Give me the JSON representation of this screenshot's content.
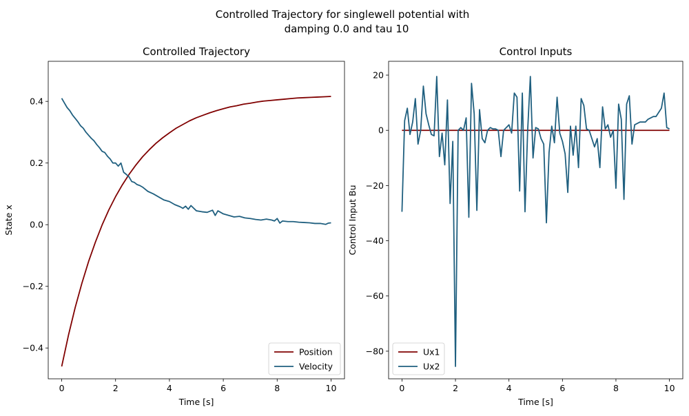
{
  "figure": {
    "title_line1": "Controlled Trajectory for singlewell potential with",
    "title_line2": "damping 0.0 and tau 10"
  },
  "colors": {
    "series_red": "#800000",
    "series_blue": "#1f5f7f"
  },
  "chart_data": [
    {
      "type": "line",
      "title": "Controlled Trajectory",
      "xlabel": "Time [s]",
      "ylabel": "State x",
      "xlim": [
        -0.5,
        10.5
      ],
      "ylim": [
        -0.5,
        0.53
      ],
      "xticks": [
        0,
        2,
        4,
        6,
        8,
        10
      ],
      "xtick_labels": [
        "0",
        "2",
        "4",
        "6",
        "8",
        "10"
      ],
      "yticks": [
        -0.4,
        -0.2,
        0.0,
        0.2,
        0.4
      ],
      "ytick_labels": [
        "−0.4",
        "−0.2",
        "0.0",
        "0.2",
        "0.4"
      ],
      "legend_position": "lower-right",
      "series": [
        {
          "name": "Position",
          "color": "#800000",
          "x": [
            0,
            0.25,
            0.5,
            0.75,
            1.0,
            1.25,
            1.5,
            1.75,
            2.0,
            2.25,
            2.5,
            2.75,
            3.0,
            3.25,
            3.5,
            3.75,
            4.0,
            4.25,
            4.5,
            4.75,
            5.0,
            5.25,
            5.5,
            5.75,
            6.0,
            6.25,
            6.5,
            6.75,
            7.0,
            7.25,
            7.5,
            7.75,
            8.0,
            8.25,
            8.5,
            8.75,
            9.0,
            9.25,
            9.5,
            9.75,
            10.0
          ],
          "y": [
            -0.46,
            -0.359,
            -0.269,
            -0.19,
            -0.119,
            -0.057,
            -0.001,
            0.048,
            0.091,
            0.129,
            0.163,
            0.193,
            0.22,
            0.243,
            0.264,
            0.282,
            0.298,
            0.313,
            0.325,
            0.337,
            0.347,
            0.355,
            0.363,
            0.37,
            0.376,
            0.382,
            0.386,
            0.391,
            0.394,
            0.398,
            0.401,
            0.403,
            0.405,
            0.407,
            0.409,
            0.411,
            0.412,
            0.413,
            0.414,
            0.415,
            0.416
          ]
        },
        {
          "name": "Velocity",
          "color": "#1f5f7f",
          "x": [
            0,
            0.1,
            0.2,
            0.3,
            0.4,
            0.5,
            0.6,
            0.7,
            0.8,
            0.9,
            1.0,
            1.1,
            1.2,
            1.3,
            1.4,
            1.5,
            1.6,
            1.7,
            1.8,
            1.9,
            2.0,
            2.1,
            2.2,
            2.3,
            2.4,
            2.5,
            2.6,
            2.7,
            2.8,
            2.9,
            3.0,
            3.2,
            3.4,
            3.6,
            3.8,
            4.0,
            4.2,
            4.4,
            4.5,
            4.6,
            4.7,
            4.8,
            5.0,
            5.2,
            5.4,
            5.6,
            5.7,
            5.8,
            6.0,
            6.2,
            6.4,
            6.6,
            6.8,
            7.0,
            7.2,
            7.4,
            7.6,
            7.8,
            7.9,
            8.0,
            8.1,
            8.2,
            8.4,
            8.6,
            8.8,
            9.0,
            9.2,
            9.4,
            9.6,
            9.8,
            9.9,
            10.0
          ],
          "y": [
            0.41,
            0.395,
            0.38,
            0.37,
            0.356,
            0.345,
            0.334,
            0.321,
            0.313,
            0.3,
            0.29,
            0.28,
            0.272,
            0.26,
            0.25,
            0.238,
            0.234,
            0.222,
            0.213,
            0.2,
            0.2,
            0.19,
            0.2,
            0.17,
            0.163,
            0.155,
            0.14,
            0.137,
            0.13,
            0.127,
            0.122,
            0.108,
            0.1,
            0.09,
            0.08,
            0.075,
            0.065,
            0.058,
            0.053,
            0.06,
            0.05,
            0.062,
            0.045,
            0.042,
            0.04,
            0.047,
            0.03,
            0.045,
            0.035,
            0.03,
            0.025,
            0.027,
            0.022,
            0.02,
            0.017,
            0.015,
            0.018,
            0.015,
            0.012,
            0.02,
            0.005,
            0.012,
            0.01,
            0.01,
            0.008,
            0.007,
            0.006,
            0.004,
            0.004,
            0.001,
            0.005,
            0.006
          ]
        }
      ]
    },
    {
      "type": "line",
      "title": "Control Inputs",
      "xlabel": "Time [s]",
      "ylabel": "Control Input Bu",
      "xlim": [
        -0.5,
        10.5
      ],
      "ylim": [
        -90,
        25
      ],
      "xticks": [
        0,
        2,
        4,
        6,
        8,
        10
      ],
      "xtick_labels": [
        "0",
        "2",
        "4",
        "6",
        "8",
        "10"
      ],
      "yticks": [
        -80,
        -60,
        -40,
        -20,
        0,
        20
      ],
      "ytick_labels": [
        "−80",
        "−60",
        "−40",
        "−20",
        "0",
        "20"
      ],
      "legend_position": "lower-left",
      "series": [
        {
          "name": "Ux1",
          "color": "#800000",
          "x": [
            0,
            10
          ],
          "y": [
            0,
            0
          ]
        },
        {
          "name": "Ux2",
          "color": "#1f5f7f",
          "x": [
            0,
            0.1,
            0.2,
            0.3,
            0.4,
            0.5,
            0.6,
            0.7,
            0.8,
            0.9,
            1.0,
            1.1,
            1.2,
            1.3,
            1.4,
            1.5,
            1.6,
            1.7,
            1.8,
            1.9,
            2.0,
            2.1,
            2.2,
            2.3,
            2.4,
            2.5,
            2.6,
            2.7,
            2.8,
            2.9,
            3.0,
            3.1,
            3.2,
            3.3,
            3.4,
            3.5,
            3.6,
            3.7,
            3.8,
            3.9,
            4.0,
            4.1,
            4.2,
            4.3,
            4.4,
            4.5,
            4.6,
            4.7,
            4.8,
            4.9,
            5.0,
            5.1,
            5.2,
            5.3,
            5.4,
            5.5,
            5.6,
            5.7,
            5.8,
            5.9,
            6.0,
            6.1,
            6.2,
            6.3,
            6.4,
            6.5,
            6.6,
            6.7,
            6.8,
            6.9,
            7.0,
            7.1,
            7.2,
            7.3,
            7.4,
            7.5,
            7.6,
            7.7,
            7.8,
            7.9,
            8.0,
            8.1,
            8.2,
            8.3,
            8.4,
            8.5,
            8.6,
            8.7,
            8.8,
            8.9,
            9.0,
            9.1,
            9.2,
            9.3,
            9.4,
            9.5,
            9.6,
            9.7,
            9.8,
            9.9,
            10.0
          ],
          "y": [
            -29.5,
            3.5,
            8,
            -1.5,
            3,
            11.5,
            -5,
            0,
            16,
            6,
            2,
            -1.5,
            -2,
            19.5,
            -9.5,
            -1,
            -12.5,
            11,
            -26.5,
            -4,
            -85.5,
            0,
            1,
            0,
            4.5,
            -31.5,
            17,
            6,
            -29,
            7.5,
            -3,
            -4.5,
            0,
            1,
            0.5,
            0.5,
            0,
            -9.5,
            0,
            1,
            2,
            -1,
            13.5,
            12,
            -22,
            13.5,
            -29.5,
            0,
            19.5,
            -10,
            1,
            0.5,
            -3,
            -5,
            -33.5,
            -8,
            1.5,
            -4.5,
            12,
            -1,
            -4,
            -8.5,
            -22.5,
            1.5,
            -9,
            1.5,
            -13.5,
            11.5,
            9,
            0.5,
            0,
            -3,
            -6,
            -3,
            -13.5,
            8.5,
            0.5,
            2,
            -2.5,
            0,
            -21,
            9.5,
            4,
            -25,
            9.5,
            12.5,
            -5,
            2,
            2.5,
            3,
            3,
            3,
            4,
            4.5,
            5,
            5,
            6.5,
            8,
            13.5,
            1,
            0.5
          ]
        }
      ]
    }
  ]
}
